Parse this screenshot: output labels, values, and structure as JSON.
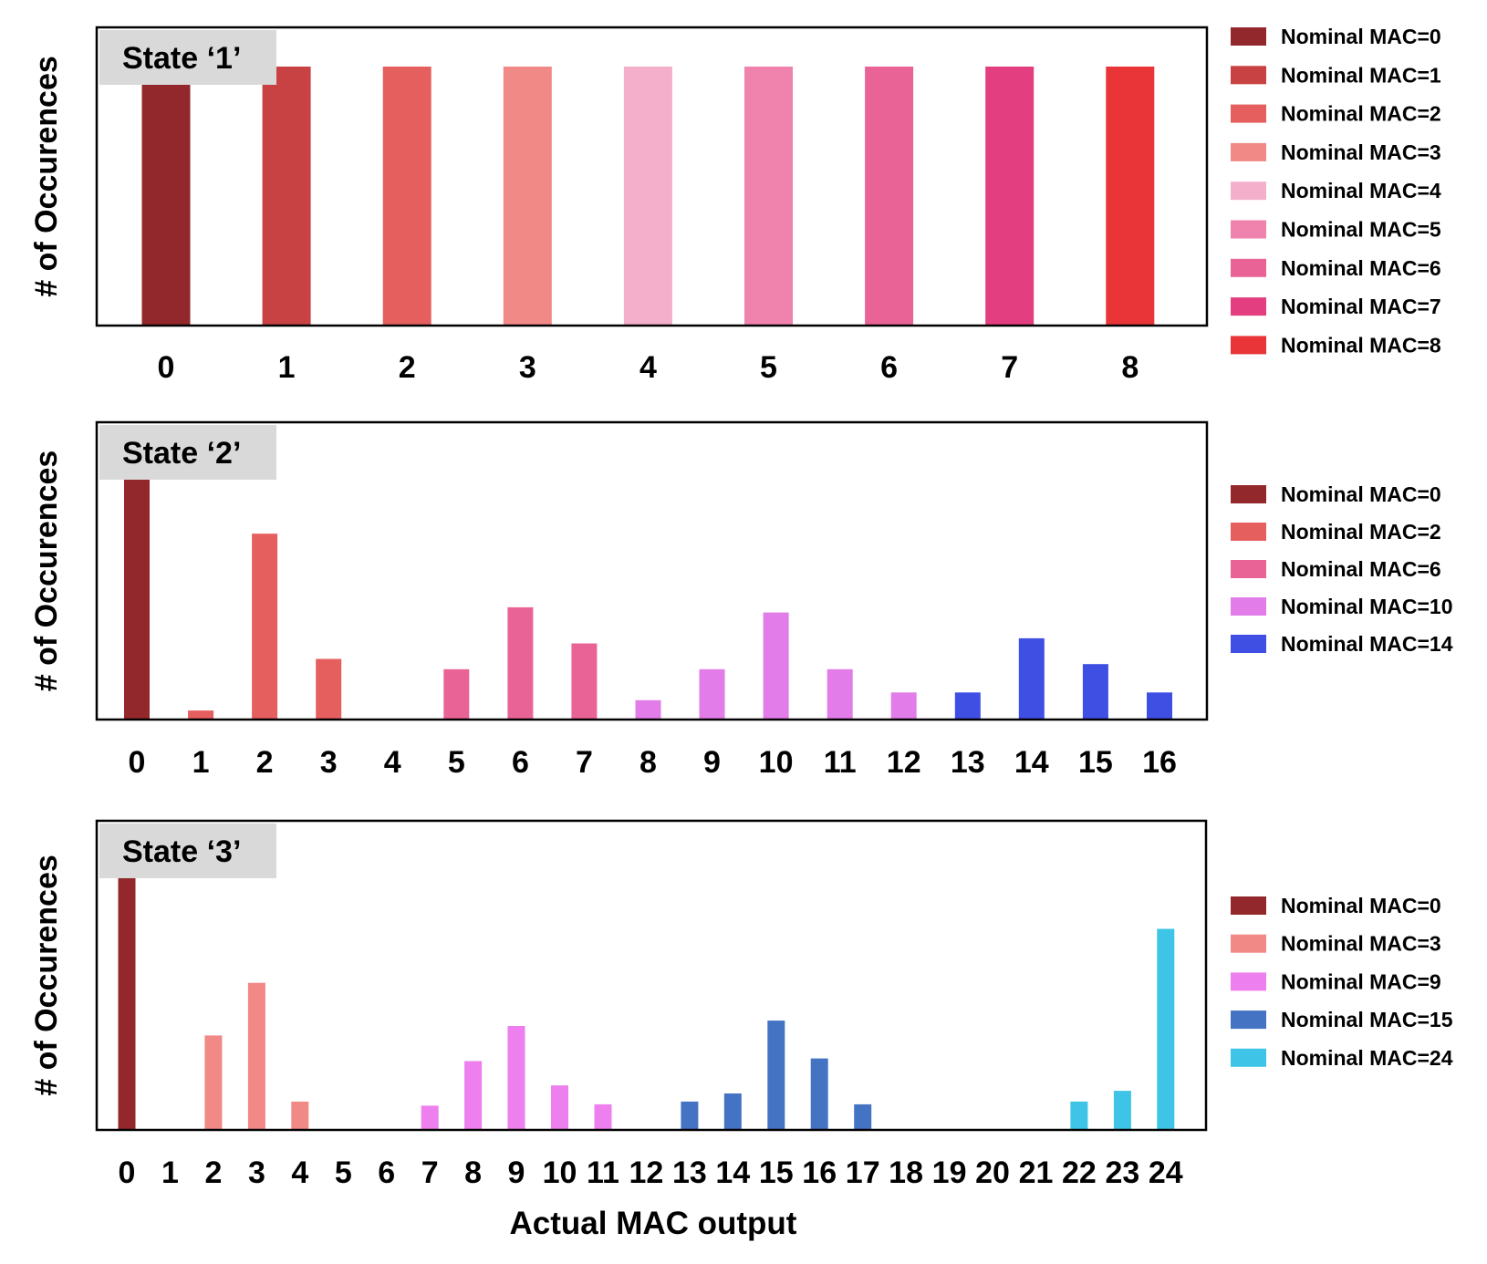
{
  "figure": {
    "xlabel": "Actual MAC output"
  },
  "chart_data": [
    {
      "type": "bar",
      "title": "State ‘1’",
      "ylabel": "# of Occurences",
      "xlabel": "",
      "categories": [
        "0",
        "1",
        "2",
        "3",
        "4",
        "5",
        "6",
        "7",
        "8"
      ],
      "ylim": [
        0,
        100
      ],
      "series": [
        {
          "name": "Nominal MAC=0",
          "color": "#92282b",
          "points": [
            {
              "x": 0,
              "y": 100
            }
          ]
        },
        {
          "name": "Nominal MAC=1",
          "color": "#c84244",
          "points": [
            {
              "x": 1,
              "y": 100
            }
          ]
        },
        {
          "name": "Nominal MAC=2",
          "color": "#e65f5f",
          "points": [
            {
              "x": 2,
              "y": 100
            }
          ]
        },
        {
          "name": "Nominal MAC=3",
          "color": "#f18987",
          "points": [
            {
              "x": 3,
              "y": 100
            }
          ]
        },
        {
          "name": "Nominal MAC=4",
          "color": "#f4afca",
          "points": [
            {
              "x": 4,
              "y": 100
            }
          ]
        },
        {
          "name": "Nominal MAC=5",
          "color": "#ef83ad",
          "points": [
            {
              "x": 5,
              "y": 100
            }
          ]
        },
        {
          "name": "Nominal MAC=6",
          "color": "#ea6396",
          "points": [
            {
              "x": 6,
              "y": 100
            }
          ]
        },
        {
          "name": "Nominal MAC=7",
          "color": "#e33f80",
          "points": [
            {
              "x": 7,
              "y": 100
            }
          ]
        },
        {
          "name": "Nominal MAC=8",
          "color": "#e93537",
          "points": [
            {
              "x": 8,
              "y": 100
            }
          ]
        }
      ]
    },
    {
      "type": "bar",
      "title": "State ‘2’",
      "ylabel": "# of Occurences",
      "xlabel": "",
      "categories": [
        "0",
        "1",
        "2",
        "3",
        "4",
        "5",
        "6",
        "7",
        "8",
        "9",
        "10",
        "11",
        "12",
        "13",
        "14",
        "15",
        "16"
      ],
      "ylim": [
        0,
        100
      ],
      "series": [
        {
          "name": "Nominal MAC=0",
          "color": "#92282b",
          "points": [
            {
              "x": 0,
              "y": 100
            }
          ]
        },
        {
          "name": "Nominal MAC=2",
          "color": "#e65f5f",
          "points": [
            {
              "x": 1,
              "y": 3.5
            },
            {
              "x": 2,
              "y": 72
            },
            {
              "x": 3,
              "y": 23.5
            }
          ]
        },
        {
          "name": "Nominal MAC=6",
          "color": "#ea6396",
          "points": [
            {
              "x": 5,
              "y": 19.5
            },
            {
              "x": 6,
              "y": 43.5
            },
            {
              "x": 7,
              "y": 29.5
            }
          ]
        },
        {
          "name": "Nominal MAC=10",
          "color": "#e27ce9",
          "points": [
            {
              "x": 8,
              "y": 7.5
            },
            {
              "x": 9,
              "y": 19.5
            },
            {
              "x": 10,
              "y": 41.5
            },
            {
              "x": 11,
              "y": 19.5
            },
            {
              "x": 12,
              "y": 10.5
            }
          ]
        },
        {
          "name": "Nominal MAC=14",
          "color": "#3f4ee3",
          "points": [
            {
              "x": 13,
              "y": 10.5
            },
            {
              "x": 14,
              "y": 31.5
            },
            {
              "x": 15,
              "y": 21.5
            },
            {
              "x": 16,
              "y": 10.5
            }
          ]
        }
      ]
    },
    {
      "type": "bar",
      "title": "State ‘3’",
      "ylabel": "# of Occurences",
      "xlabel": "Actual MAC output",
      "categories": [
        "0",
        "1",
        "2",
        "3",
        "4",
        "5",
        "6",
        "7",
        "8",
        "9",
        "10",
        "11",
        "12",
        "13",
        "14",
        "15",
        "16",
        "17",
        "18",
        "19",
        "20",
        "21",
        "22",
        "23",
        "24"
      ],
      "ylim": [
        0,
        100
      ],
      "series": [
        {
          "name": "Nominal MAC=0",
          "color": "#92282b",
          "points": [
            {
              "x": 0,
              "y": 100
            }
          ]
        },
        {
          "name": "Nominal MAC=3",
          "color": "#f18987",
          "points": [
            {
              "x": 2,
              "y": 35
            },
            {
              "x": 3,
              "y": 54.5
            },
            {
              "x": 4,
              "y": 10.5
            }
          ]
        },
        {
          "name": "Nominal MAC=9",
          "color": "#ed7fee",
          "points": [
            {
              "x": 7,
              "y": 9
            },
            {
              "x": 8,
              "y": 25.5
            },
            {
              "x": 9,
              "y": 38.5
            },
            {
              "x": 10,
              "y": 16.5
            },
            {
              "x": 11,
              "y": 9.5
            }
          ]
        },
        {
          "name": "Nominal MAC=15",
          "color": "#4473c4",
          "points": [
            {
              "x": 13,
              "y": 10.5
            },
            {
              "x": 14,
              "y": 13.5
            },
            {
              "x": 15,
              "y": 40.5
            },
            {
              "x": 16,
              "y": 26.5
            },
            {
              "x": 17,
              "y": 9.5
            }
          ]
        },
        {
          "name": "Nominal MAC=24",
          "color": "#3ec4e6",
          "points": [
            {
              "x": 22,
              "y": 10.5
            },
            {
              "x": 23,
              "y": 14.5
            },
            {
              "x": 24,
              "y": 74.5
            }
          ]
        }
      ]
    }
  ]
}
